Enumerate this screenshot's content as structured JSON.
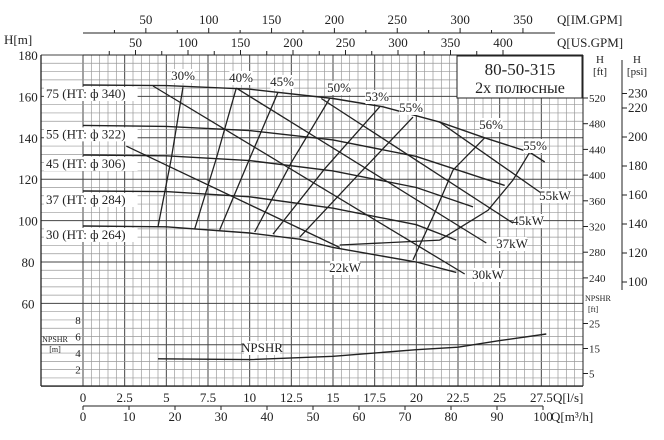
{
  "chart_data": {
    "type": "line",
    "title": "80-50-315",
    "subtitle": "2х  полюсные",
    "grid": true,
    "x_axes": {
      "ls": {
        "label": "Q[l/s]",
        "ticks": [
          0,
          2.5,
          5,
          7.5,
          10,
          12.5,
          15,
          17.5,
          20,
          22.5,
          25,
          27.5
        ],
        "range": [
          0,
          30
        ]
      },
      "m3h": {
        "label": "Q[m³/h]",
        "ticks": [
          0,
          10,
          20,
          30,
          40,
          50,
          60,
          70,
          80,
          90,
          100
        ]
      },
      "us_gpm": {
        "label": "Q[US.GPM]",
        "ticks": [
          50,
          100,
          150,
          200,
          250,
          300,
          350,
          400
        ]
      },
      "im_gpm": {
        "label": "Q[IM.GPM]",
        "ticks": [
          50,
          100,
          150,
          200,
          250,
          300,
          350
        ]
      }
    },
    "y_axes": {
      "h_m": {
        "label": "H[m]",
        "ticks": [
          60,
          80,
          100,
          120,
          140,
          160,
          180
        ],
        "range": [
          20,
          180
        ]
      },
      "h_ft": {
        "label_top": "H",
        "label_unit": "[ft]",
        "ticks": [
          240,
          280,
          320,
          360,
          400,
          440,
          480,
          520
        ]
      },
      "h_psi": {
        "label_top": "H",
        "label_unit": "[psi]",
        "ticks": [
          100,
          120,
          140,
          160,
          180,
          200,
          220,
          230
        ]
      },
      "npshr_m": {
        "label": "NPSHR",
        "unit": "[m]",
        "ticks": [
          2,
          4,
          6,
          8
        ]
      },
      "npshr_ft": {
        "label": "NPSHR",
        "unit": "[ft]",
        "ticks": [
          5,
          15,
          25
        ]
      }
    },
    "head_curves": [
      {
        "name": "75 (HT: ф 340)",
        "points": [
          [
            0,
            165.5
          ],
          [
            5,
            165.2
          ],
          [
            10,
            163.5
          ],
          [
            15,
            159
          ],
          [
            18,
            155
          ],
          [
            21.4,
            147.6
          ],
          [
            24.1,
            140
          ],
          [
            26.8,
            133
          ],
          [
            27.7,
            128.3
          ]
        ]
      },
      {
        "name": "55 (HT: ф 322)",
        "points": [
          [
            0,
            146
          ],
          [
            5,
            145.5
          ],
          [
            10,
            143.5
          ],
          [
            15,
            139
          ],
          [
            20,
            131
          ],
          [
            25.3,
            117
          ]
        ]
      },
      {
        "name": "45 (HT: ф 306)",
        "points": [
          [
            0,
            131.7
          ],
          [
            5,
            131.3
          ],
          [
            10,
            129
          ],
          [
            15,
            124
          ],
          [
            20,
            116
          ],
          [
            23.4,
            106.6
          ]
        ]
      },
      {
        "name": "37 (HT: ф 284)",
        "points": [
          [
            0,
            114.3
          ],
          [
            5,
            114
          ],
          [
            10,
            111.5
          ],
          [
            15,
            106
          ],
          [
            20,
            98
          ],
          [
            22.4,
            90.6
          ]
        ]
      },
      {
        "name": "30 (HT: ф 264)",
        "points": [
          [
            0,
            97.4
          ],
          [
            5,
            97
          ],
          [
            10,
            94
          ],
          [
            13,
            91
          ],
          [
            15,
            87
          ],
          [
            20,
            80
          ],
          [
            22.4,
            75
          ]
        ]
      }
    ],
    "efficiency_curves": [
      {
        "name": "30%",
        "points": [
          [
            6.0,
            164.5
          ],
          [
            5.3,
            130
          ],
          [
            4.5,
            97
          ]
        ]
      },
      {
        "name": "40%",
        "points": [
          [
            9.2,
            164
          ],
          [
            8.0,
            130
          ],
          [
            6.7,
            96
          ]
        ]
      },
      {
        "name": "45%",
        "points": [
          [
            11.7,
            162
          ],
          [
            10.0,
            130
          ],
          [
            8.2,
            95.5
          ]
        ]
      },
      {
        "name": "50%",
        "points": [
          [
            14.8,
            159
          ],
          [
            12.5,
            128
          ],
          [
            10.3,
            94.5
          ]
        ]
      },
      {
        "name": "53%",
        "points": [
          [
            17.8,
            155
          ],
          [
            14.5,
            125
          ],
          [
            11.4,
            93.5
          ]
        ]
      },
      {
        "name": "55%",
        "points": [
          [
            19.8,
            150
          ],
          [
            16.5,
            122
          ],
          [
            13.0,
            92
          ]
        ]
      },
      {
        "name": "56%",
        "points": [
          [
            24.1,
            140
          ],
          [
            22.2,
            124.4
          ],
          [
            21.1,
            103.7
          ],
          [
            19.8,
            81
          ]
        ]
      },
      {
        "name": "55%",
        "points": [
          [
            26.8,
            133
          ],
          [
            25.8,
            119.6
          ],
          [
            24.3,
            105
          ],
          [
            21.4,
            90.6
          ],
          [
            15.4,
            88.2
          ]
        ]
      }
    ],
    "power_lines": [
      {
        "name": "22kW",
        "points": [
          [
            2.6,
            136
          ],
          [
            15.4,
            87
          ]
        ]
      },
      {
        "name": "30kW",
        "points": [
          [
            4.2,
            165
          ],
          [
            22.9,
            74.2
          ]
        ]
      },
      {
        "name": "37kW",
        "points": [
          [
            9.2,
            164
          ],
          [
            24.2,
            89.2
          ]
        ]
      },
      {
        "name": "45kW",
        "points": [
          [
            14.3,
            159
          ],
          [
            25.8,
            98.8
          ]
        ]
      },
      {
        "name": "55kW",
        "points": [
          [
            21.4,
            147.6
          ],
          [
            27.5,
            113.3
          ]
        ]
      }
    ],
    "npshr_curve": {
      "name": "NPSHR",
      "points": [
        [
          4.5,
          3.3
        ],
        [
          10,
          3.2
        ],
        [
          15,
          3.6
        ],
        [
          20,
          4.4
        ],
        [
          22.5,
          4.7
        ],
        [
          25,
          5.5
        ],
        [
          27.8,
          6.3
        ]
      ]
    }
  }
}
